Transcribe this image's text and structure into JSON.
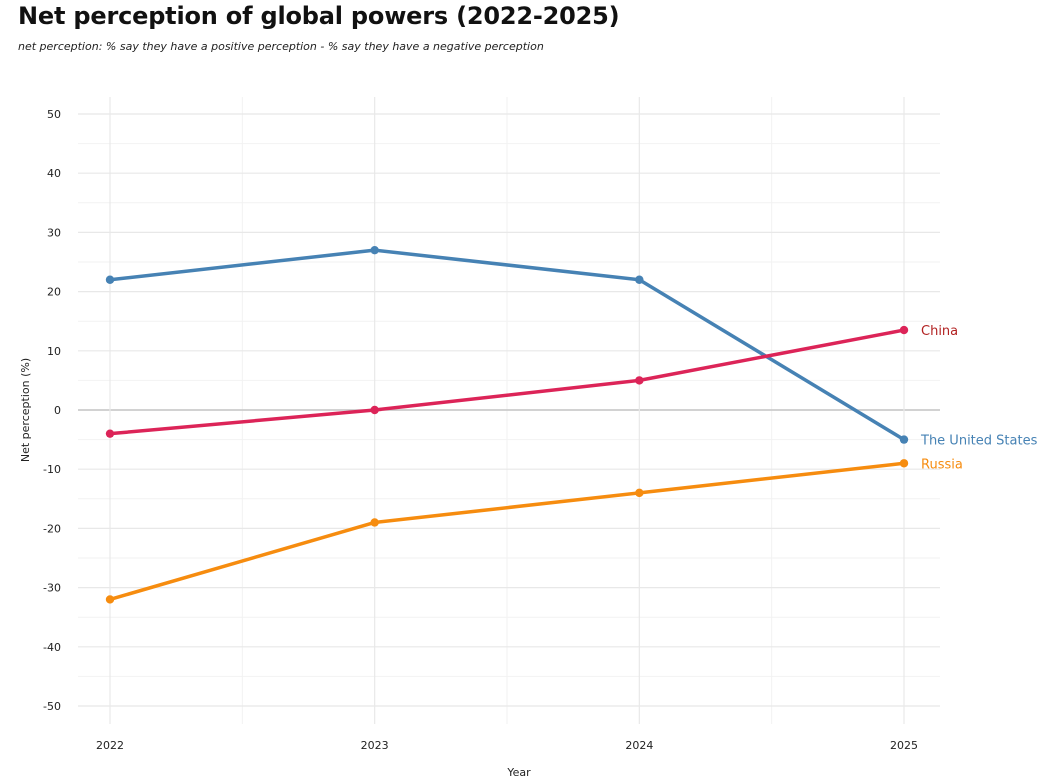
{
  "chart_data": {
    "type": "line",
    "title": "Net perception of global powers (2022-2025)",
    "subtitle": "net perception: % say they have a positive perception - % say they have a negative perception",
    "xlabel": "Year",
    "ylabel": "Net perception (%)",
    "x": [
      2022,
      2023,
      2024,
      2025
    ],
    "x_tick_labels": [
      "2022",
      "2023",
      "2024",
      "2025"
    ],
    "ylim": [
      -50,
      50
    ],
    "y_ticks": [
      50,
      40,
      30,
      20,
      10,
      0,
      -10,
      -20,
      -30,
      -40,
      -50
    ],
    "y_tick_labels": [
      "50",
      "40",
      "30",
      "20",
      "10",
      "0",
      "-10",
      "-20",
      "-30",
      "-40",
      "-50"
    ],
    "grid": true,
    "legend": "direct labels at line ends (right)",
    "series": [
      {
        "name": "The United States",
        "color": "#4682b4",
        "values": [
          22,
          27,
          22,
          -5
        ]
      },
      {
        "name": "China",
        "color": "#dc2458",
        "values": [
          -4,
          0,
          5,
          13.5
        ]
      },
      {
        "name": "Russia",
        "color": "#f68c0f",
        "values": [
          -32,
          -19,
          -14,
          -9
        ]
      }
    ],
    "series_label_colors": {
      "The United States": "#4682b4",
      "China": "#b22222",
      "Russia": "#f68c0f"
    }
  }
}
